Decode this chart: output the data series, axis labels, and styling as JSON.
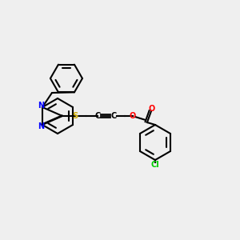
{
  "background_color": "#efefef",
  "atom_colors": {
    "N": "#0000ff",
    "S": "#ccaa00",
    "O": "#ff0000",
    "Cl": "#00cc00",
    "C": "#000000"
  },
  "figsize": [
    3.0,
    3.0
  ],
  "dpi": 100
}
